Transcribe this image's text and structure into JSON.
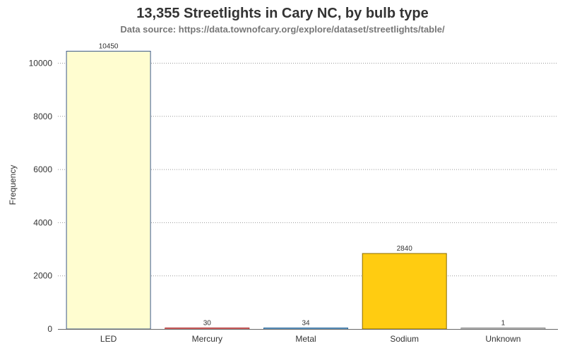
{
  "chart_data": {
    "type": "bar",
    "title": "13,355 Streetlights in Cary NC, by bulb type",
    "subtitle": "Data source: https://data.townofcary.org/explore/dataset/streetlights/table/",
    "xlabel": "",
    "ylabel": "Frequency",
    "ylim": [
      0,
      10450
    ],
    "yticks": [
      0,
      2000,
      4000,
      6000,
      8000,
      10000
    ],
    "grid": true,
    "categories": [
      "LED",
      "Mercury",
      "Metal",
      "Sodium",
      "Unknown"
    ],
    "values": [
      10450,
      30,
      34,
      2840,
      1
    ],
    "data_labels": [
      "10450",
      "30",
      "34",
      "2840",
      "1"
    ],
    "bar_colors": [
      "#FFFDD0",
      "#F7B3B3",
      "#A9C8E8",
      "#FFCC11",
      "#F0F0F0"
    ],
    "bar_outline_colors": [
      "#3D5A8C",
      "#B03030",
      "#2E6E9E",
      "#8A6B00",
      "#888888"
    ]
  }
}
